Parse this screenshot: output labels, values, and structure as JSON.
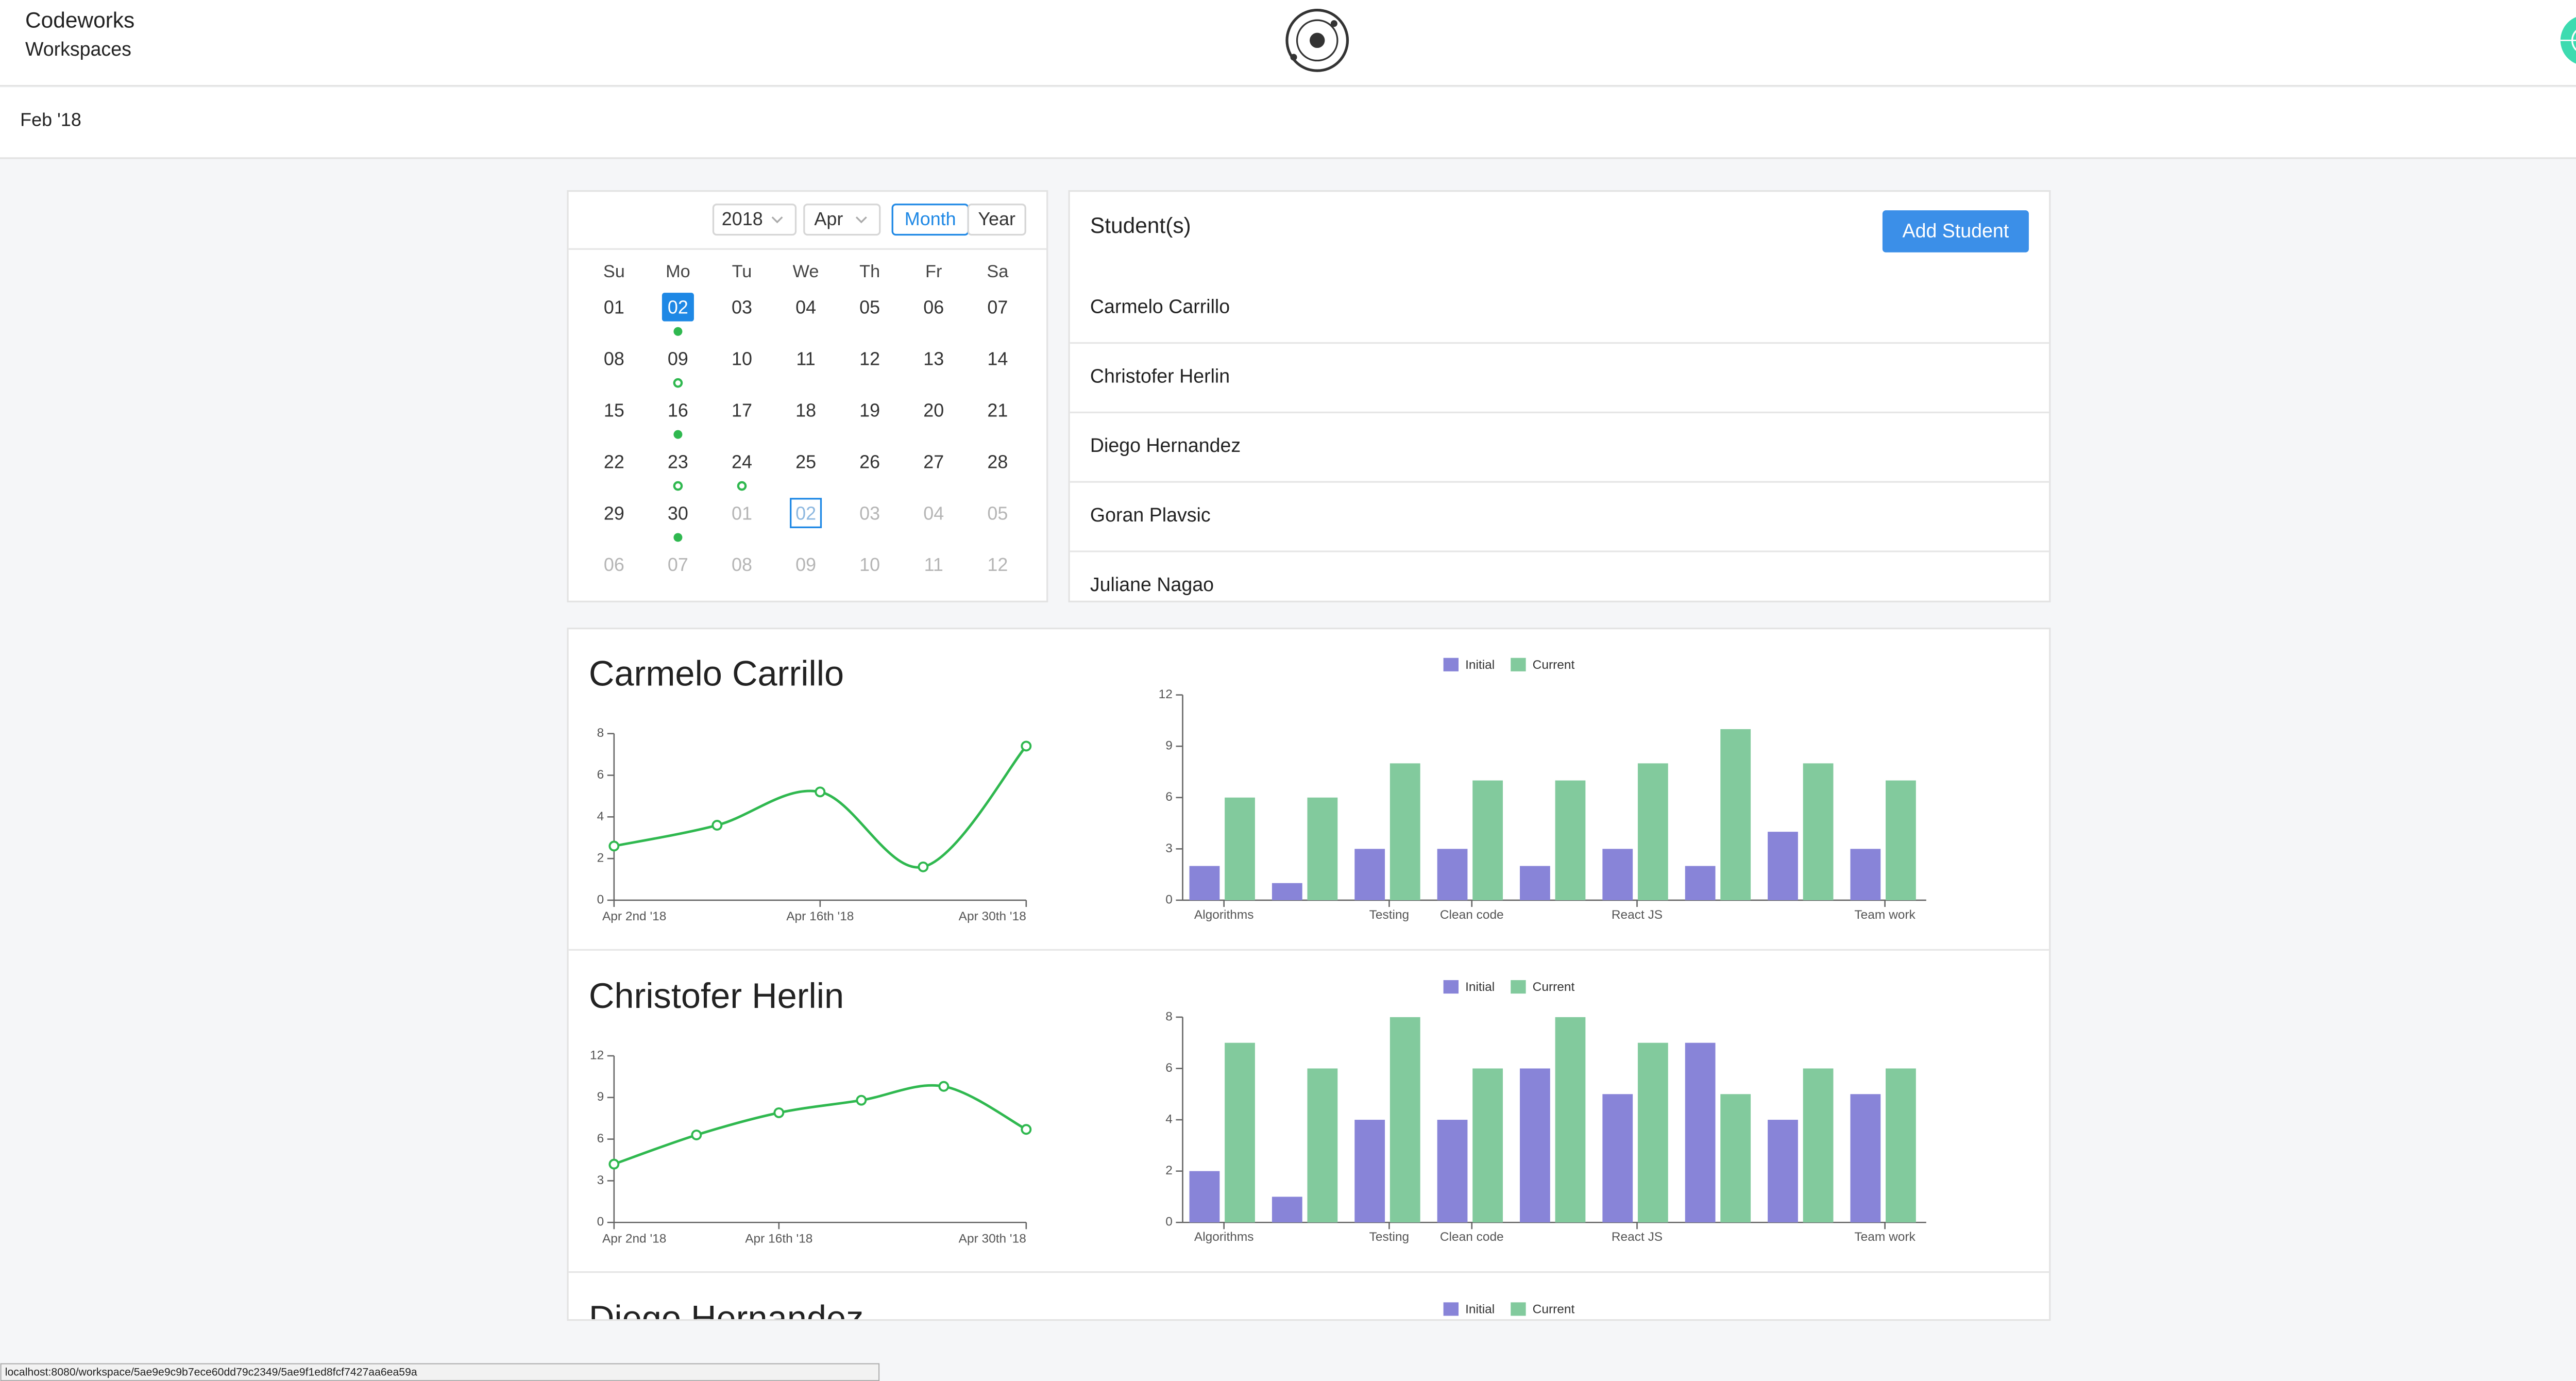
{
  "header": {
    "title": "Codeworks",
    "subtitle": "Workspaces"
  },
  "toolbar": {
    "period": "Feb '18"
  },
  "calendar": {
    "year": "2018",
    "month": "Apr",
    "views": [
      "Month",
      "Year"
    ],
    "active_view": 0,
    "weekdays": [
      "Su",
      "Mo",
      "Tu",
      "We",
      "Th",
      "Fr",
      "Sa"
    ],
    "weeks": [
      [
        {
          "day": "01"
        },
        {
          "day": "02",
          "selected": true,
          "dot": "filled"
        },
        {
          "day": "03"
        },
        {
          "day": "04"
        },
        {
          "day": "05"
        },
        {
          "day": "06"
        },
        {
          "day": "07"
        }
      ],
      [
        {
          "day": "08"
        },
        {
          "day": "09",
          "dot": "hollow"
        },
        {
          "day": "10"
        },
        {
          "day": "11"
        },
        {
          "day": "12"
        },
        {
          "day": "13"
        },
        {
          "day": "14"
        }
      ],
      [
        {
          "day": "15"
        },
        {
          "day": "16",
          "dot": "filled"
        },
        {
          "day": "17"
        },
        {
          "day": "18"
        },
        {
          "day": "19"
        },
        {
          "day": "20"
        },
        {
          "day": "21"
        }
      ],
      [
        {
          "day": "22"
        },
        {
          "day": "23",
          "dot": "hollow"
        },
        {
          "day": "24",
          "dot": "hollow"
        },
        {
          "day": "25"
        },
        {
          "day": "26"
        },
        {
          "day": "27"
        },
        {
          "day": "28"
        }
      ],
      [
        {
          "day": "29"
        },
        {
          "day": "30",
          "dot": "filled"
        },
        {
          "day": "01",
          "muted": true
        },
        {
          "day": "02",
          "muted": true,
          "outlined": true
        },
        {
          "day": "03",
          "muted": true
        },
        {
          "day": "04",
          "muted": true
        },
        {
          "day": "05",
          "muted": true
        }
      ],
      [
        {
          "day": "06",
          "muted": true
        },
        {
          "day": "07",
          "muted": true
        },
        {
          "day": "08",
          "muted": true
        },
        {
          "day": "09",
          "muted": true
        },
        {
          "day": "10",
          "muted": true
        },
        {
          "day": "11",
          "muted": true
        },
        {
          "day": "12",
          "muted": true
        }
      ]
    ]
  },
  "students": {
    "title": "Student(s)",
    "button": "Add Student",
    "names": [
      "Carmelo Carrillo",
      "Christofer Herlin",
      "Diego Hernandez",
      "Goran Plavsic",
      "Juliane Nagao"
    ]
  },
  "cards": [
    {
      "name": "Carmelo Carrillo",
      "line_chart": {
        "type": "line",
        "categories": [
          "Apr 2nd '18",
          null,
          "Apr 16th '18",
          null,
          "Apr 30th '18"
        ],
        "values": [
          2.6,
          3.6,
          5.2,
          1.6,
          7.4
        ],
        "color": "#2fb84f",
        "ylim": [
          0,
          8
        ],
        "yticks": [
          0,
          2,
          4,
          6,
          8
        ]
      },
      "bar_chart": {
        "type": "bar",
        "categories": [
          "Algorithms",
          null,
          "Testing",
          "Clean code",
          null,
          "React JS",
          null,
          null,
          "Team work"
        ],
        "series": [
          {
            "name": "Initial",
            "color": "#8884d8",
            "values": [
              2,
              1,
              3,
              3,
              2,
              3,
              2,
              4,
              3
            ]
          },
          {
            "name": "Current",
            "color": "#82ca9d",
            "values": [
              6,
              6,
              8,
              7,
              7,
              8,
              10,
              8,
              7
            ]
          }
        ],
        "ylim": [
          0,
          12
        ],
        "yticks": [
          0,
          3,
          6,
          9,
          12
        ]
      }
    },
    {
      "name": "Christofer Herlin",
      "line_chart": {
        "type": "line",
        "categories": [
          "Apr 2nd '18",
          null,
          "Apr 16th '18",
          null,
          null,
          "Apr 30th '18"
        ],
        "values": [
          4.2,
          6.3,
          7.9,
          8.8,
          9.8,
          6.7
        ],
        "color": "#2fb84f",
        "ylim": [
          0,
          12
        ],
        "yticks": [
          0,
          3,
          6,
          9,
          12
        ]
      },
      "bar_chart": {
        "type": "bar",
        "categories": [
          "Algorithms",
          null,
          "Testing",
          "Clean code",
          null,
          "React JS",
          null,
          null,
          "Team work"
        ],
        "series": [
          {
            "name": "Initial",
            "color": "#8884d8",
            "values": [
              2,
              1,
              4,
              4,
              6,
              5,
              7,
              4,
              5
            ]
          },
          {
            "name": "Current",
            "color": "#82ca9d",
            "values": [
              7,
              6,
              8,
              6,
              8,
              7,
              5,
              6,
              6
            ]
          }
        ],
        "ylim": [
          0,
          8
        ],
        "yticks": [
          0,
          2,
          4,
          6,
          8
        ]
      }
    },
    {
      "name": "Diego Hernandez",
      "bar_chart": {
        "type": "bar",
        "series": [
          {
            "name": "Initial",
            "color": "#8884d8"
          },
          {
            "name": "Current",
            "color": "#82ca9d"
          }
        ]
      }
    }
  ],
  "status_bar": {
    "url": "localhost:8080/workspace/5ae9e9c9b7ece60dd79c2349/5ae9f1ed8fcf7427aa6ea59a"
  }
}
